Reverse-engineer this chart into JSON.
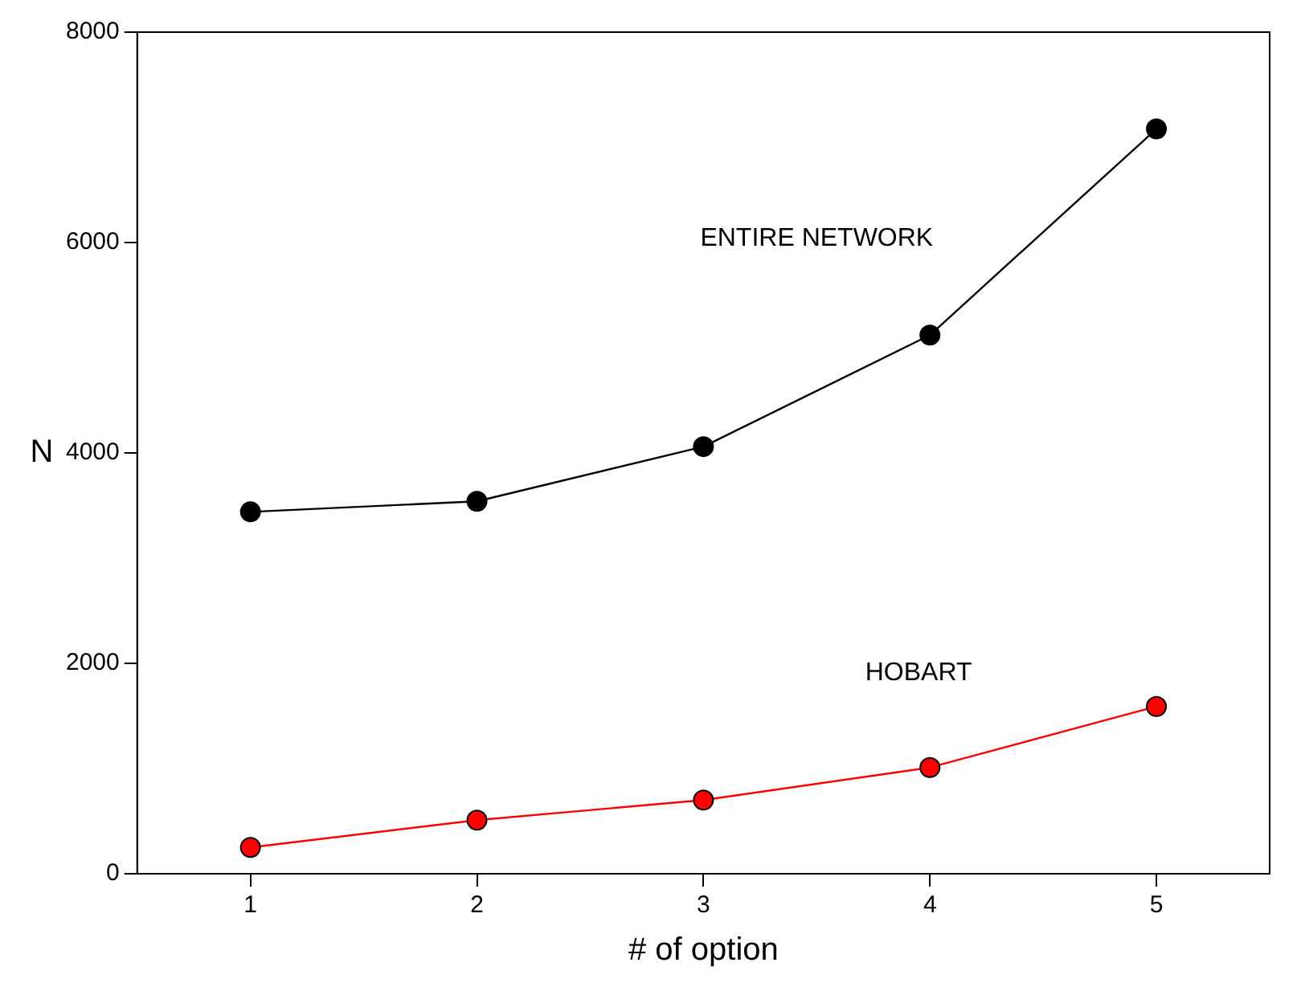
{
  "chart_data": {
    "type": "line",
    "xlabel": "# of option",
    "ylabel": "N",
    "x": [
      1,
      2,
      3,
      4,
      5
    ],
    "series": [
      {
        "name": "ENTIRE NETWORK",
        "color": "#000000",
        "values": [
          3440,
          3540,
          4060,
          5120,
          7080
        ]
      },
      {
        "name": "HOBART",
        "color": "#ff0000",
        "values": [
          250,
          510,
          700,
          1010,
          1590
        ]
      }
    ],
    "xlim": [
      0.5,
      5.5
    ],
    "xticks": [
      1,
      2,
      3,
      4,
      5
    ],
    "ylim": [
      0,
      8000
    ],
    "yticks": [
      0,
      2000,
      4000,
      6000,
      8000
    ],
    "grid": false,
    "legend": false,
    "marker": "circle",
    "line_style": "solid"
  }
}
